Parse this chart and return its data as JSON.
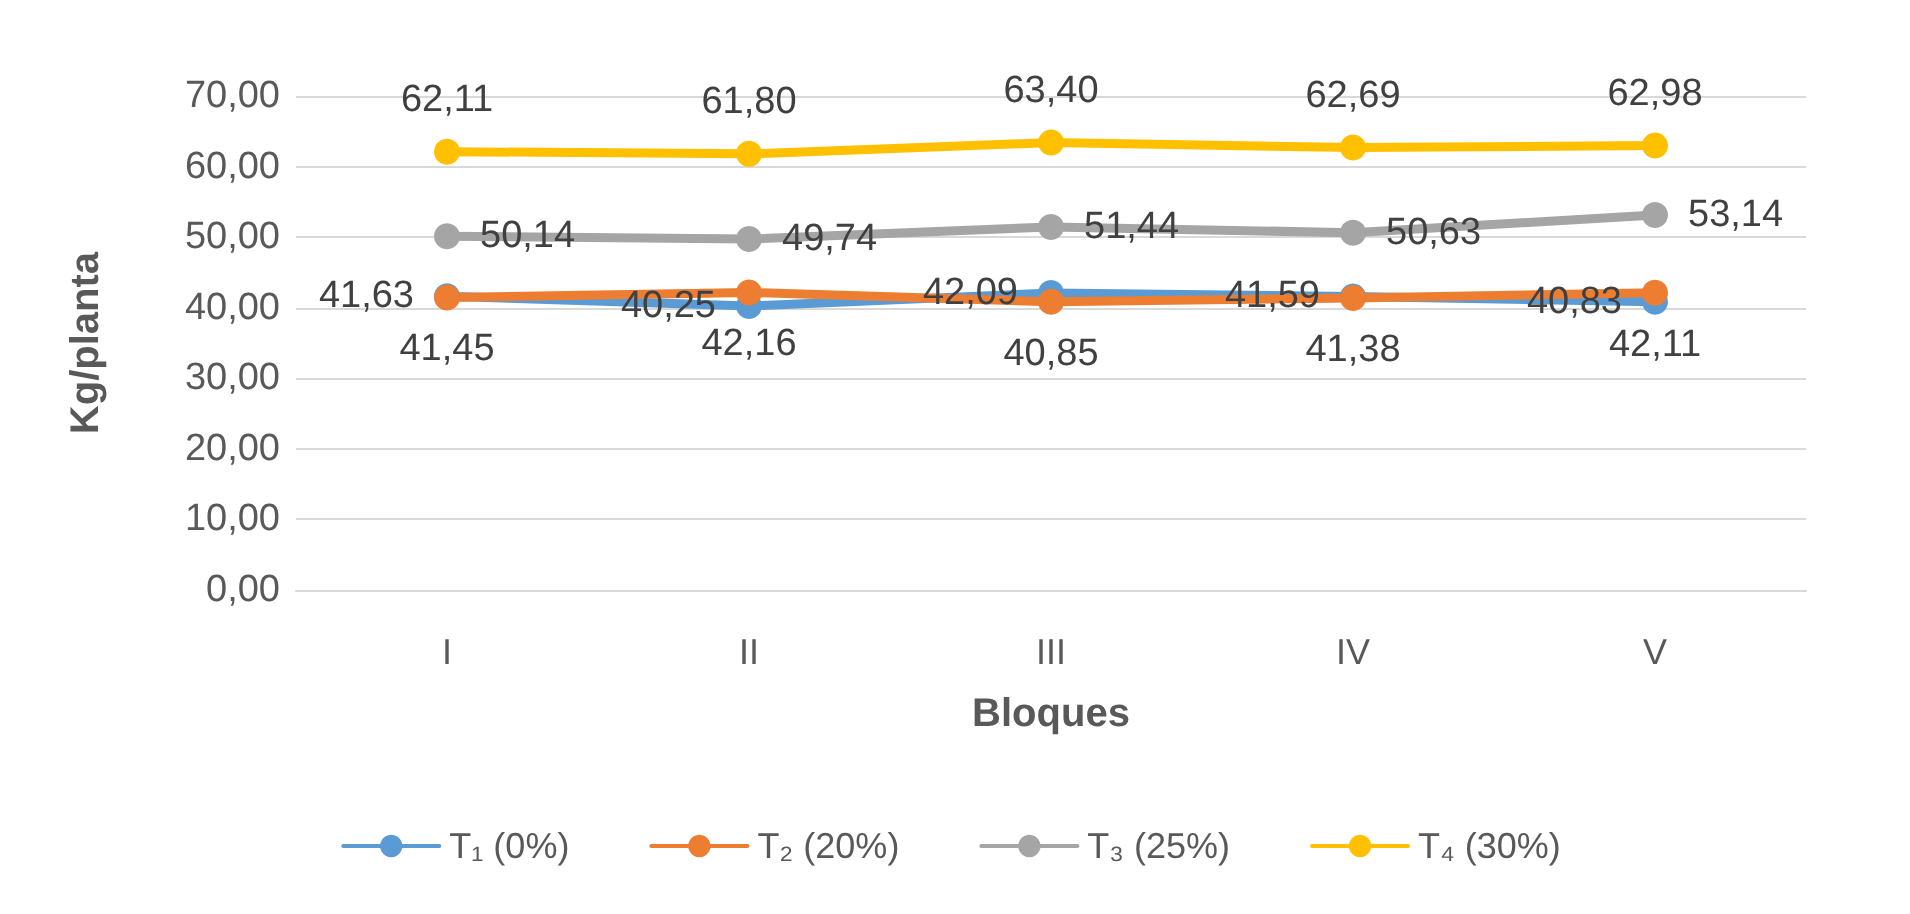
{
  "chart_data": {
    "type": "line",
    "xlabel": "Bloques",
    "ylabel": "Kg/planta",
    "categories": [
      "I",
      "II",
      "III",
      "IV",
      "V"
    ],
    "series": [
      {
        "name": "T₁ (0%)",
        "color": "#5b9bd5",
        "values": [
          41.63,
          40.25,
          42.09,
          41.59,
          40.83
        ],
        "value_labels": [
          "41,63",
          "40,25",
          "42,09",
          "41,59",
          "40,83"
        ]
      },
      {
        "name": "T₂ (20%)",
        "color": "#ed7d31",
        "values": [
          41.45,
          42.16,
          40.85,
          41.38,
          42.11
        ],
        "value_labels": [
          "41,45",
          "42,16",
          "40,85",
          "41,38",
          "42,11"
        ]
      },
      {
        "name": "T₃ (25%)",
        "color": "#a5a5a5",
        "values": [
          50.14,
          49.74,
          51.44,
          50.63,
          53.14
        ],
        "value_labels": [
          "50,14",
          "49,74",
          "51,44",
          "50,63",
          "53,14"
        ]
      },
      {
        "name": "T₄ (30%)",
        "color": "#ffc000",
        "values": [
          62.11,
          61.8,
          63.4,
          62.69,
          62.98
        ],
        "value_labels": [
          "62,11",
          "61,80",
          "63,40",
          "62,69",
          "62,98"
        ]
      }
    ],
    "ylim": [
      0,
      70
    ],
    "yticks": [
      {
        "value": 0,
        "label": "0,00"
      },
      {
        "value": 10,
        "label": "10,00"
      },
      {
        "value": 20,
        "label": "20,00"
      },
      {
        "value": 30,
        "label": "30,00"
      },
      {
        "value": 40,
        "label": "40,00"
      },
      {
        "value": 50,
        "label": "50,00"
      },
      {
        "value": 60,
        "label": "60,00"
      },
      {
        "value": 70,
        "label": "70,00"
      }
    ],
    "grid": "y",
    "legend": "bottom",
    "marker": "circle",
    "line_style": "solid"
  }
}
